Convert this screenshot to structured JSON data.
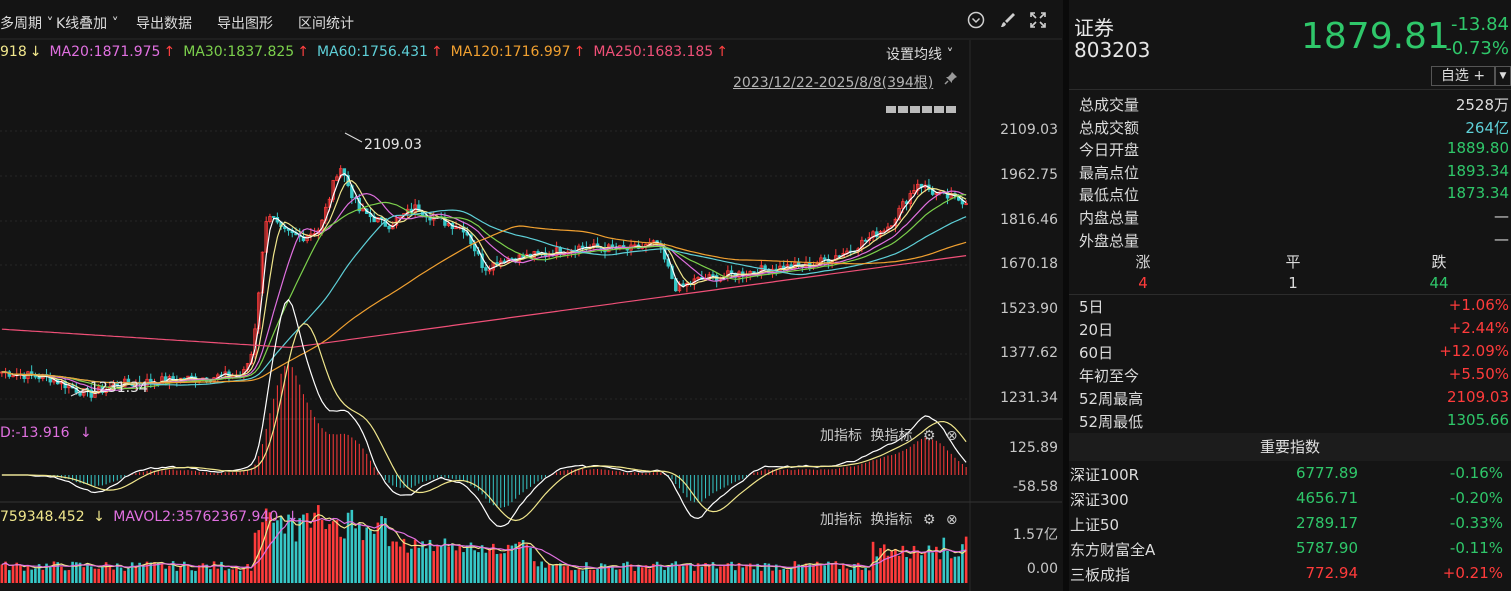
{
  "toolbar": {
    "period": "多周期",
    "overlay": "K线叠加",
    "export_data": "导出数据",
    "export_graph": "导出图形",
    "range_stats": "区间统计"
  },
  "ma_legend": [
    {
      "label": "918",
      "arrow": "↓",
      "color": "#f0e68c",
      "arrow_color": "#f0e68c"
    },
    {
      "label": "MA20:1871.975",
      "arrow": "↑",
      "color": "#e070e0",
      "arrow_color": "#ff4040"
    },
    {
      "label": "MA30:1837.825",
      "arrow": "↑",
      "color": "#7cd04c",
      "arrow_color": "#ff4040"
    },
    {
      "label": "MA60:1756.431",
      "arrow": "↑",
      "color": "#5ed0d8",
      "arrow_color": "#ff4040"
    },
    {
      "label": "MA120:1716.997",
      "arrow": "↑",
      "color": "#f0a030",
      "arrow_color": "#ff4040"
    },
    {
      "label": "MA250:1683.185",
      "arrow": "↑",
      "color": "#f05078",
      "arrow_color": "#ff4040"
    }
  ],
  "set_ma": "设置均线",
  "date_range": "2023/12/22-2025/8/8(394根)",
  "chart_data": {
    "type": "candlestick",
    "price_axis_ticks": [
      "2109.03",
      "1962.75",
      "1816.46",
      "1670.18",
      "1523.90",
      "1377.62",
      "1231.34"
    ],
    "high_annotation": "2109.03",
    "low_annotation": "1231.34",
    "ylim": [
      1231.34,
      2109.03
    ],
    "macd": {
      "legend": "D:-13.916",
      "arrow": "↓",
      "ticks": [
        "125.89",
        "-58.58"
      ]
    },
    "volume": {
      "legend_a": "759348.452",
      "legend_b": "MAVOL2:35762367.940",
      "arrow": "↓",
      "ticks": [
        "1.57亿",
        "0.00"
      ]
    }
  },
  "sub_tools": {
    "add": "加指标",
    "switch": "换指标"
  },
  "panel": {
    "name": "证券",
    "code": "803203",
    "price": "1879.81",
    "change": "-13.84",
    "change_pct": "-0.73%",
    "fav": "自选 +",
    "stats": [
      {
        "k": "总成交量",
        "v": "2528万",
        "color": "#dcdcdc"
      },
      {
        "k": "总成交额",
        "v": "264亿",
        "color": "#5ed0d8"
      },
      {
        "k": "今日开盘",
        "v": "1889.80",
        "color": "#2fc76a"
      },
      {
        "k": "最高点位",
        "v": "1893.34",
        "color": "#2fc76a"
      },
      {
        "k": "最低点位",
        "v": "1873.34",
        "color": "#2fc76a"
      },
      {
        "k": "内盘总量",
        "v": "—",
        "color": "#dcdcdc"
      },
      {
        "k": "外盘总量",
        "v": "—",
        "color": "#dcdcdc"
      }
    ],
    "adv": {
      "up_label": "涨",
      "flat_label": "平",
      "down_label": "跌",
      "up": "4",
      "flat": "1",
      "down": "44"
    },
    "perf": [
      {
        "k": "5日",
        "v": "+1.06%",
        "color": "#ff3b3b"
      },
      {
        "k": "20日",
        "v": "+2.44%",
        "color": "#ff3b3b"
      },
      {
        "k": "60日",
        "v": "+12.09%",
        "color": "#ff3b3b"
      },
      {
        "k": "年初至今",
        "v": "+5.50%",
        "color": "#ff3b3b"
      },
      {
        "k": "52周最高",
        "v": "2109.03",
        "color": "#ff3b3b"
      },
      {
        "k": "52周最低",
        "v": "1305.66",
        "color": "#2fc76a"
      }
    ],
    "index_head": "重要指数",
    "indices": [
      {
        "n": "深证100R",
        "p": "6777.89",
        "c": "-0.16%",
        "pc": "#2fc76a",
        "cc": "#2fc76a"
      },
      {
        "n": "深证300",
        "p": "4656.71",
        "c": "-0.20%",
        "pc": "#2fc76a",
        "cc": "#2fc76a"
      },
      {
        "n": "上证50",
        "p": "2789.17",
        "c": "-0.33%",
        "pc": "#2fc76a",
        "cc": "#2fc76a"
      },
      {
        "n": "东方财富全A",
        "p": "5787.90",
        "c": "-0.11%",
        "pc": "#2fc76a",
        "cc": "#2fc76a"
      },
      {
        "n": "三板成指",
        "p": "772.94",
        "c": "+0.21%",
        "pc": "#ff3b3b",
        "cc": "#ff3b3b"
      }
    ]
  }
}
